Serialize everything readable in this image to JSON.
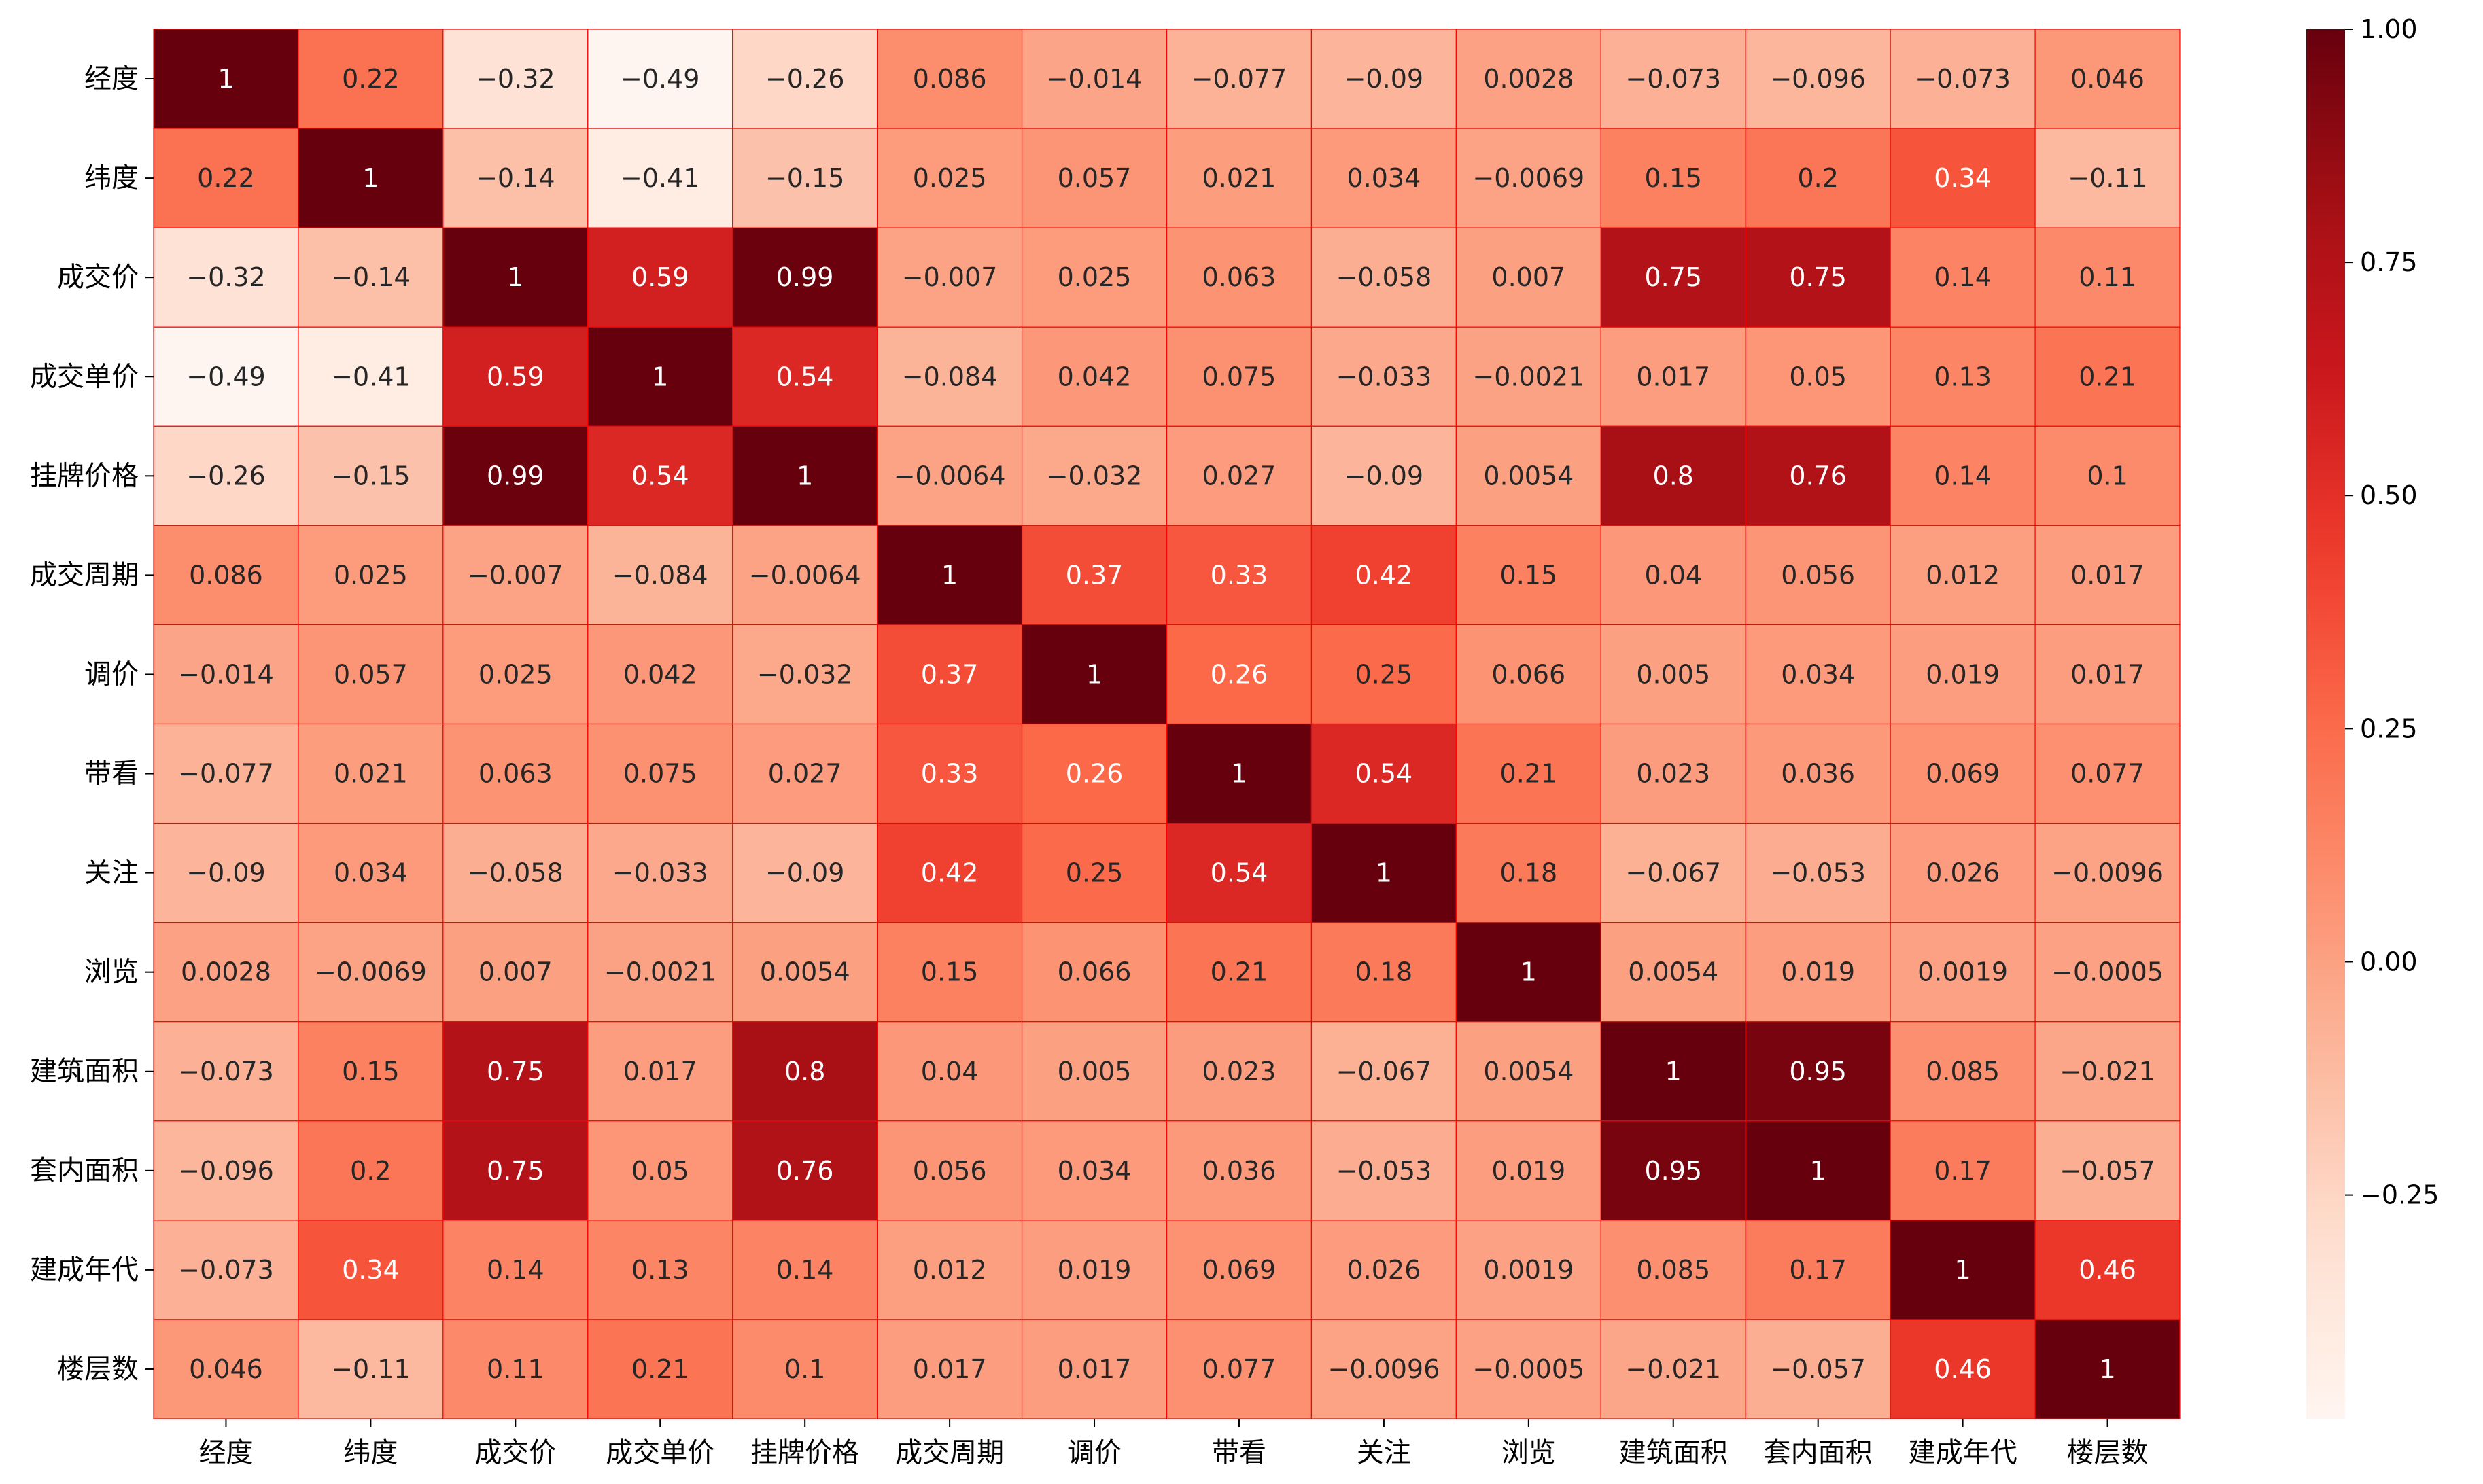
{
  "chart_data": {
    "type": "heatmap",
    "title": "",
    "xlabel": "",
    "ylabel": "",
    "colormap": "Reds",
    "linecolor": "#ff0000",
    "vmin": -0.49,
    "vmax": 1.0,
    "labels": [
      "经度",
      "纬度",
      "成交价",
      "成交单价",
      "挂牌价格",
      "成交周期",
      "调价",
      "带看",
      "关注",
      "浏览",
      "建筑面积",
      "套内面积",
      "建成年代",
      "楼层数"
    ],
    "matrix": [
      [
        "1",
        "0.22",
        "-0.32",
        "-0.49",
        "-0.26",
        "0.086",
        "-0.014",
        "-0.077",
        "-0.09",
        "0.0028",
        "-0.073",
        "-0.096",
        "-0.073",
        "0.046"
      ],
      [
        "0.22",
        "1",
        "-0.14",
        "-0.41",
        "-0.15",
        "0.025",
        "0.057",
        "0.021",
        "0.034",
        "-0.0069",
        "0.15",
        "0.2",
        "0.34",
        "-0.11"
      ],
      [
        "-0.32",
        "-0.14",
        "1",
        "0.59",
        "0.99",
        "-0.007",
        "0.025",
        "0.063",
        "-0.058",
        "0.007",
        "0.75",
        "0.75",
        "0.14",
        "0.11"
      ],
      [
        "-0.49",
        "-0.41",
        "0.59",
        "1",
        "0.54",
        "-0.084",
        "0.042",
        "0.075",
        "-0.033",
        "-0.0021",
        "0.017",
        "0.05",
        "0.13",
        "0.21"
      ],
      [
        "-0.26",
        "-0.15",
        "0.99",
        "0.54",
        "1",
        "-0.0064",
        "-0.032",
        "0.027",
        "-0.09",
        "0.0054",
        "0.8",
        "0.76",
        "0.14",
        "0.1"
      ],
      [
        "0.086",
        "0.025",
        "-0.007",
        "-0.084",
        "-0.0064",
        "1",
        "0.37",
        "0.33",
        "0.42",
        "0.15",
        "0.04",
        "0.056",
        "0.012",
        "0.017"
      ],
      [
        "-0.014",
        "0.057",
        "0.025",
        "0.042",
        "-0.032",
        "0.37",
        "1",
        "0.26",
        "0.25",
        "0.066",
        "0.005",
        "0.034",
        "0.019",
        "0.017"
      ],
      [
        "-0.077",
        "0.021",
        "0.063",
        "0.075",
        "0.027",
        "0.33",
        "0.26",
        "1",
        "0.54",
        "0.21",
        "0.023",
        "0.036",
        "0.069",
        "0.077"
      ],
      [
        "-0.09",
        "0.034",
        "-0.058",
        "-0.033",
        "-0.09",
        "0.42",
        "0.25",
        "0.54",
        "1",
        "0.18",
        "-0.067",
        "-0.053",
        "0.026",
        "-0.0096"
      ],
      [
        "0.0028",
        "-0.0069",
        "0.007",
        "-0.0021",
        "0.0054",
        "0.15",
        "0.066",
        "0.21",
        "0.18",
        "1",
        "0.0054",
        "0.019",
        "0.0019",
        "-0.0005"
      ],
      [
        "-0.073",
        "0.15",
        "0.75",
        "0.017",
        "0.8",
        "0.04",
        "0.005",
        "0.023",
        "-0.067",
        "0.0054",
        "1",
        "0.95",
        "0.085",
        "-0.021"
      ],
      [
        "-0.096",
        "0.2",
        "0.75",
        "0.05",
        "0.76",
        "0.056",
        "0.034",
        "0.036",
        "-0.053",
        "0.019",
        "0.95",
        "1",
        "0.17",
        "-0.057"
      ],
      [
        "-0.073",
        "0.34",
        "0.14",
        "0.13",
        "0.14",
        "0.012",
        "0.019",
        "0.069",
        "0.026",
        "0.0019",
        "0.085",
        "0.17",
        "1",
        "0.46"
      ],
      [
        "0.046",
        "-0.11",
        "0.11",
        "0.21",
        "0.1",
        "0.017",
        "0.017",
        "0.077",
        "-0.0096",
        "-0.0005",
        "-0.021",
        "-0.057",
        "0.46",
        "1"
      ]
    ],
    "colorbar": {
      "ticks": [
        1.0,
        0.75,
        0.5,
        0.25,
        0.0,
        -0.25
      ],
      "tick_labels": [
        "1.00",
        "0.75",
        "0.50",
        "0.25",
        "0.00",
        "−0.25"
      ]
    },
    "grid": true,
    "legend": "colorbar-right"
  }
}
